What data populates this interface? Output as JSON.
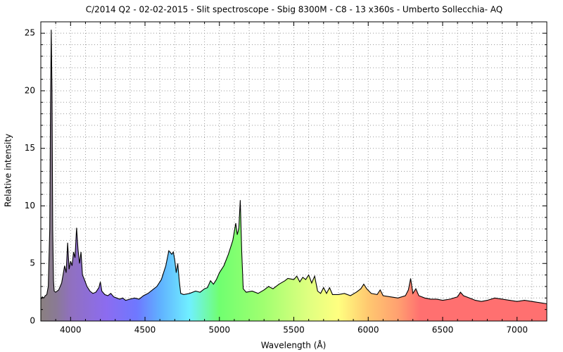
{
  "chart_data": {
    "type": "area",
    "title": "C/2014 Q2 - 02-02-2015 - Slit spectroscope - Sbig 8300M - C8 - 13 x360s - Umberto Sollecchia- AQ",
    "x_label": "Wavelength (Å)",
    "y_label": "Relative intensity",
    "x": [
      3800,
      3810,
      3820,
      3830,
      3840,
      3850,
      3860,
      3865,
      3870,
      3875,
      3880,
      3885,
      3890,
      3900,
      3920,
      3940,
      3960,
      3970,
      3980,
      3990,
      4000,
      4010,
      4020,
      4030,
      4040,
      4050,
      4060,
      4070,
      4080,
      4090,
      4110,
      4130,
      4150,
      4170,
      4190,
      4200,
      4210,
      4230,
      4250,
      4270,
      4290,
      4310,
      4330,
      4350,
      4370,
      4400,
      4430,
      4460,
      4490,
      4520,
      4550,
      4580,
      4610,
      4640,
      4660,
      4680,
      4690,
      4700,
      4710,
      4720,
      4730,
      4740,
      4760,
      4800,
      4840,
      4870,
      4900,
      4920,
      4940,
      4960,
      4980,
      5000,
      5030,
      5060,
      5090,
      5110,
      5120,
      5130,
      5140,
      5150,
      5160,
      5180,
      5220,
      5260,
      5300,
      5330,
      5360,
      5400,
      5440,
      5460,
      5500,
      5520,
      5540,
      5560,
      5580,
      5600,
      5620,
      5640,
      5660,
      5680,
      5700,
      5720,
      5740,
      5760,
      5800,
      5840,
      5880,
      5920,
      5950,
      5970,
      5990,
      6020,
      6060,
      6080,
      6100,
      6150,
      6200,
      6250,
      6270,
      6285,
      6300,
      6320,
      6340,
      6380,
      6420,
      6460,
      6500,
      6550,
      6600,
      6620,
      6640,
      6680,
      6720,
      6760,
      6800,
      6850,
      6900,
      6950,
      7000,
      7050,
      7100,
      7150,
      7200
    ],
    "series": [
      {
        "name": "Relative intensity",
        "color": "#000000",
        "values": [
          1.9,
          2.1,
          2.0,
          2.2,
          2.3,
          3.0,
          8,
          18,
          25.3,
          20,
          8,
          3.5,
          2.6,
          2.5,
          2.7,
          3.3,
          4.8,
          4.2,
          6.8,
          4.5,
          5.2,
          4.8,
          6.0,
          5.5,
          8.1,
          6.2,
          5.0,
          6.0,
          4.0,
          3.7,
          3.0,
          2.6,
          2.4,
          2.5,
          2.9,
          3.4,
          2.6,
          2.3,
          2.2,
          2.4,
          2.1,
          2.0,
          1.9,
          2.0,
          1.8,
          1.9,
          2.0,
          1.9,
          2.2,
          2.4,
          2.7,
          3.0,
          3.6,
          4.8,
          6.1,
          5.8,
          6.0,
          5.3,
          4.2,
          5.0,
          3.5,
          2.4,
          2.3,
          2.4,
          2.6,
          2.5,
          2.8,
          2.9,
          3.5,
          3.2,
          3.6,
          4.2,
          4.8,
          5.8,
          7.0,
          8.5,
          7.5,
          8.0,
          10.5,
          6.0,
          2.8,
          2.5,
          2.6,
          2.4,
          2.7,
          3.0,
          2.8,
          3.2,
          3.5,
          3.7,
          3.6,
          3.9,
          3.4,
          3.8,
          3.6,
          4.0,
          3.3,
          3.9,
          2.6,
          2.4,
          2.9,
          2.4,
          2.9,
          2.3,
          2.3,
          2.4,
          2.2,
          2.5,
          2.8,
          3.2,
          2.8,
          2.4,
          2.3,
          2.7,
          2.2,
          2.1,
          2.0,
          2.2,
          2.7,
          3.7,
          2.4,
          2.8,
          2.2,
          2.0,
          1.9,
          1.9,
          1.8,
          1.9,
          2.1,
          2.5,
          2.2,
          2.0,
          1.8,
          1.7,
          1.8,
          2.0,
          1.9,
          1.8,
          1.7,
          1.8,
          1.7,
          1.6,
          1.5
        ]
      }
    ],
    "xlim": [
      3800,
      7200
    ],
    "ylim": [
      0,
      25.5
    ],
    "xticks": [
      4000,
      4500,
      5000,
      5500,
      6000,
      6500,
      7000
    ],
    "yticks": [
      0,
      5,
      10,
      15,
      20,
      25
    ],
    "xminorticks": [
      3900,
      4100,
      4200,
      4300,
      4400,
      4600,
      4700,
      4800,
      4900,
      5100,
      5200,
      5300,
      5400,
      5600,
      5700,
      5800,
      5900,
      6100,
      6200,
      6300,
      6400,
      6600,
      6700,
      6800,
      6900,
      7100
    ],
    "yminorticks": [
      1,
      2,
      3,
      4,
      6,
      7,
      8,
      9,
      11,
      12,
      13,
      14,
      16,
      17,
      18,
      19,
      21,
      22,
      23,
      24
    ],
    "grid": true
  }
}
